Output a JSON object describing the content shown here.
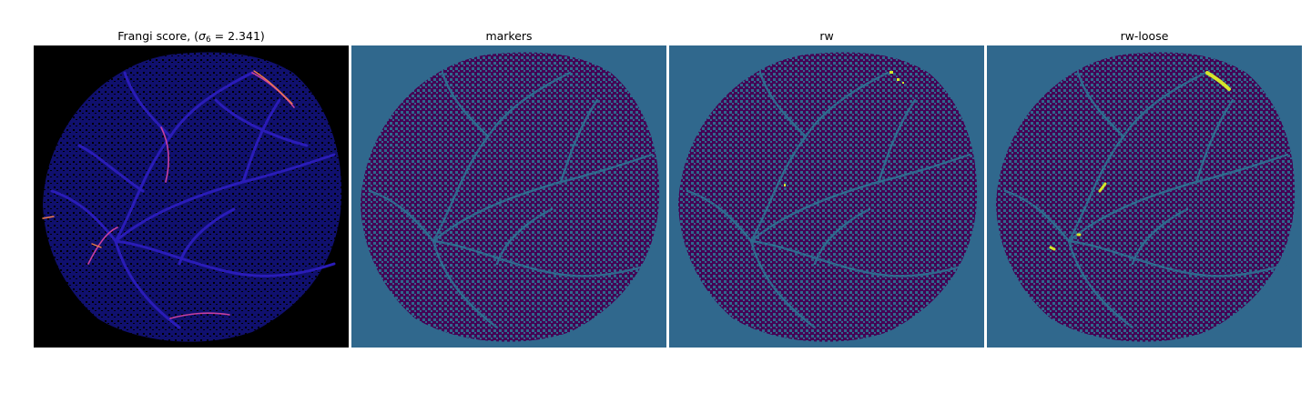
{
  "panels": [
    {
      "title_prefix": "Frangi score, (",
      "title_sigma": "σ",
      "title_sub": "6",
      "title_suffix": " = 2.341)",
      "colormap": "plasma"
    },
    {
      "title": "markers",
      "colormap": "viridis"
    },
    {
      "title": "rw",
      "colormap": "viridis"
    },
    {
      "title": "rw-loose",
      "colormap": "viridis"
    }
  ],
  "colors": {
    "frangi_background": "#000000",
    "frangi_tissue": "#14148f",
    "frangi_vessel": "#2a1cb8",
    "frangi_high": "#c83fa0",
    "frangi_peak": "#f07b4a",
    "seg_background": "#30688d",
    "seg_vessel": "#440154",
    "seg_highlight": "#d6e62a"
  }
}
